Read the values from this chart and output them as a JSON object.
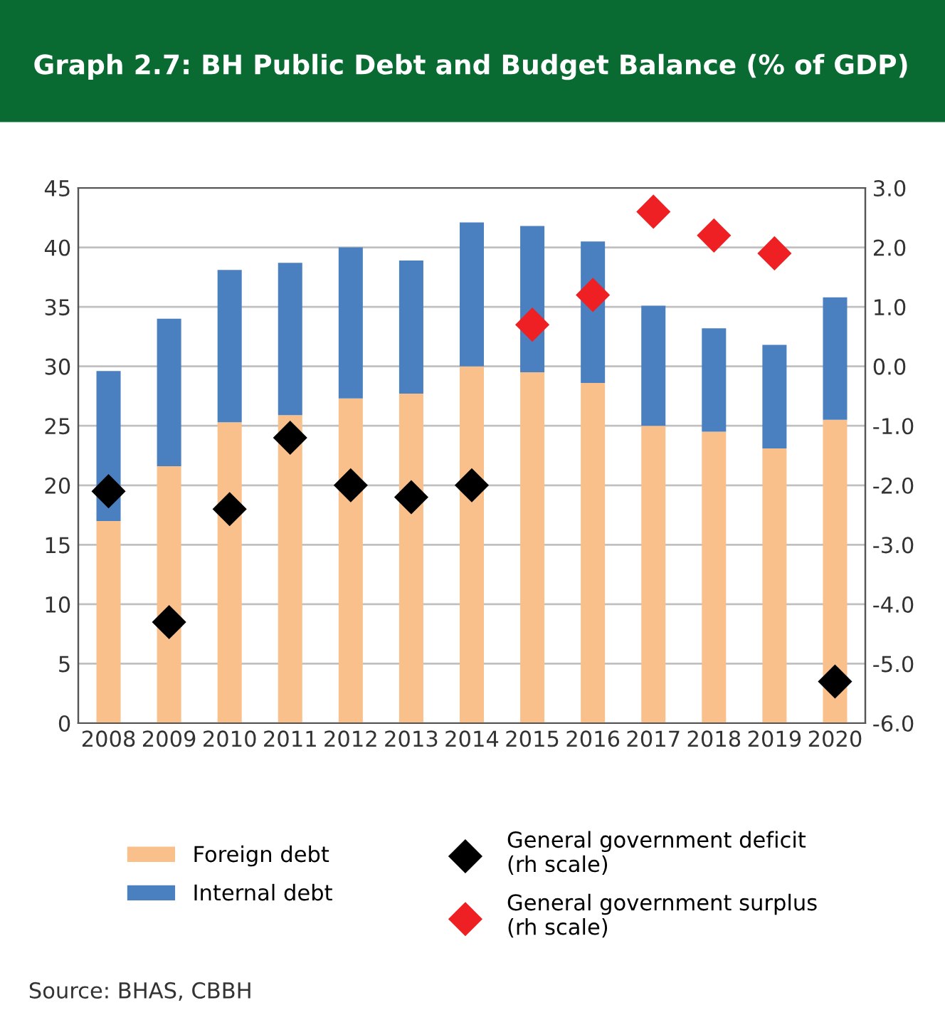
{
  "chart_data": {
    "type": "bar",
    "stacked": true,
    "title": "Graph 2.7: BH Public Debt and Budget Balance (% of GDP)",
    "categories": [
      "2008",
      "2009",
      "2010",
      "2011",
      "2012",
      "2013",
      "2014",
      "2015",
      "2016",
      "2017",
      "2018",
      "2019",
      "2020"
    ],
    "series": [
      {
        "name": "Foreign debt",
        "color": "#f9c08c",
        "values": [
          17.0,
          21.6,
          25.3,
          25.9,
          27.3,
          27.7,
          30.0,
          29.5,
          28.6,
          25.0,
          24.5,
          23.1,
          25.5
        ]
      },
      {
        "name": "Internal debt",
        "color": "#4a80bf",
        "values": [
          12.6,
          12.4,
          12.8,
          12.8,
          12.7,
          11.2,
          12.1,
          12.3,
          11.9,
          10.1,
          8.7,
          8.7,
          10.3
        ]
      },
      {
        "name": "General government deficit\n(rh scale)",
        "type": "scatter",
        "axis": "y2",
        "marker": "diamond",
        "color": "#000000",
        "values": [
          -2.1,
          -4.3,
          -2.4,
          -1.2,
          -2.0,
          -2.2,
          -2.0,
          null,
          null,
          null,
          null,
          null,
          -5.3
        ]
      },
      {
        "name": "General government surplus\n(rh scale)",
        "type": "scatter",
        "axis": "y2",
        "marker": "diamond",
        "color": "#ee2024",
        "values": [
          null,
          null,
          null,
          null,
          null,
          null,
          null,
          0.7,
          1.2,
          2.6,
          2.2,
          1.9,
          null
        ]
      }
    ],
    "ylim": [
      0,
      45
    ],
    "yticks": [
      0,
      5,
      10,
      15,
      20,
      25,
      30,
      35,
      40,
      45
    ],
    "y2lim": [
      -6,
      3
    ],
    "y2ticks": [
      {
        "value": -6,
        "label": "-6.0"
      },
      {
        "value": -5,
        "label": "-5.0"
      },
      {
        "value": -4,
        "label": "-4.0"
      },
      {
        "value": -3,
        "label": "-3.0"
      },
      {
        "value": -2,
        "label": "-2.0"
      },
      {
        "value": -1,
        "label": "-1.0"
      },
      {
        "value": 0,
        "label": "0.0"
      },
      {
        "value": 1,
        "label": "1.0"
      },
      {
        "value": 2,
        "label": "2.0"
      },
      {
        "value": 3,
        "label": "3.0"
      }
    ],
    "grid": "y",
    "legend": "bottom",
    "annotations": [
      "Source: BHAS, CBBH"
    ]
  }
}
